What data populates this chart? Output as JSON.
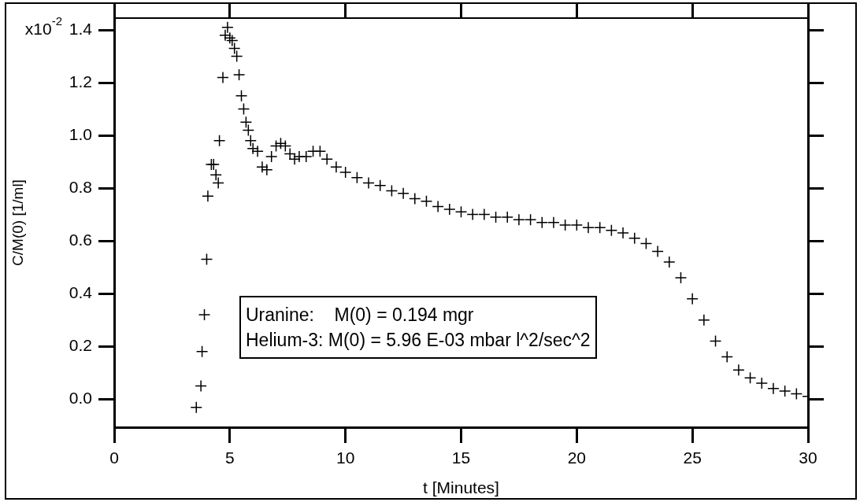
{
  "chart_data": {
    "type": "scatter",
    "xlabel": "t [Minutes]",
    "ylabel": "C/M(0) [1/ml]",
    "marker": "cross",
    "xlim": [
      0,
      30
    ],
    "xticks": [
      0,
      5,
      10,
      15,
      20,
      25,
      30
    ],
    "ylim": [
      -0.107,
      1.445
    ],
    "yticks": [
      {
        "value": 0,
        "label": "0.0"
      },
      0.2,
      0.4,
      0.6,
      0.8,
      {
        "value": 1,
        "label": "1.0"
      },
      1.2,
      1.4
    ],
    "annotations": [
      "x10$^{-2}$",
      "Uranine:    M(0) = 0.194 mgr",
      "Helium-3: M(0) = 5.96 E-03 mbar l^2/sec^2"
    ],
    "series": [
      {
        "color": "#000000",
        "x": [
          3.55,
          3.75,
          3.8,
          3.9,
          4.0,
          4.05,
          4.2,
          4.3,
          4.4,
          4.5,
          4.55,
          4.7,
          4.8,
          4.9,
          5.0,
          5.1,
          5.2,
          5.3,
          5.4,
          5.5,
          5.6,
          5.7,
          5.8,
          5.9,
          6.0,
          6.2,
          6.4,
          6.6,
          6.8,
          7.0,
          7.2,
          7.4,
          7.6,
          7.8,
          8.0,
          8.3,
          8.6,
          8.9,
          9.2,
          9.6,
          10,
          10.5,
          11,
          11.5,
          12,
          12.5,
          13,
          13.5,
          14,
          14.5,
          15,
          15.5,
          16,
          16.5,
          17,
          17.5,
          18,
          18.5,
          19,
          19.5,
          20,
          20.5,
          21,
          21.5,
          22,
          22.5,
          23,
          23.5,
          24,
          24.5,
          25,
          25.5,
          26,
          26.5,
          27,
          27.5,
          28,
          28.5,
          29,
          29.5,
          30
        ],
        "values": [
          -0.032,
          0.05,
          0.18,
          0.32,
          0.53,
          0.77,
          0.89,
          0.89,
          0.85,
          0.82,
          0.98,
          1.22,
          1.38,
          1.41,
          1.37,
          1.36,
          1.33,
          1.3,
          1.23,
          1.15,
          1.1,
          1.05,
          1.02,
          0.98,
          0.95,
          0.94,
          0.88,
          0.87,
          0.92,
          0.96,
          0.97,
          0.96,
          0.93,
          0.91,
          0.92,
          0.92,
          0.94,
          0.94,
          0.91,
          0.88,
          0.86,
          0.84,
          0.82,
          0.81,
          0.79,
          0.78,
          0.76,
          0.75,
          0.73,
          0.72,
          0.71,
          0.7,
          0.7,
          0.69,
          0.69,
          0.68,
          0.68,
          0.67,
          0.67,
          0.66,
          0.66,
          0.65,
          0.65,
          0.64,
          0.63,
          0.61,
          0.59,
          0.56,
          0.52,
          0.46,
          0.38,
          0.3,
          0.22,
          0.16,
          0.11,
          0.08,
          0.06,
          0.04,
          0.03,
          0.02,
          0.01
        ]
      }
    ]
  }
}
